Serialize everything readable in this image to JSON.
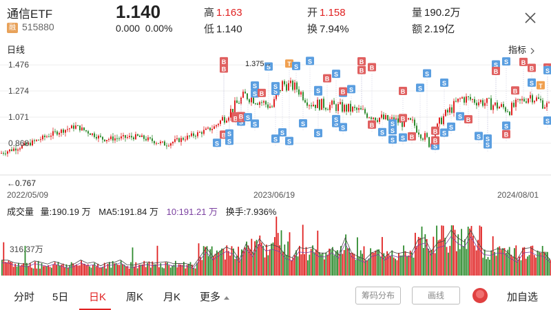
{
  "header": {
    "name": "通信ETF",
    "badge": "融",
    "code": "515880",
    "price": "1.140",
    "change": "0.000",
    "change_pct": "0.00%",
    "high_label": "高",
    "high": "1.163",
    "low_label": "低",
    "low": "1.140",
    "open_label": "开",
    "open": "1.158",
    "turnover_label": "换",
    "turnover": "7.94%",
    "volume_label": "量",
    "volume": "190.2万",
    "amount_label": "额",
    "amount": "2.19亿"
  },
  "chart": {
    "period_label": "日线",
    "indicator_label": "指标",
    "y_ticks": [
      "1.476",
      "1.274",
      "1.071",
      "0.868"
    ],
    "max_marker": "1.375→",
    "min_marker": "←0.767",
    "dates": [
      "2022/05/09",
      "2023/06/19",
      "2024/08/01"
    ],
    "buy_label": "B",
    "sell_label": "S",
    "t_label": "T"
  },
  "volume": {
    "title": "成交量",
    "vol_text": "量:190.19 万",
    "ma5_text": "MA5:191.84 万",
    "ma10_text": "10:191.21 万",
    "turnover_text": "换手:7.936%",
    "tick": "316.37万"
  },
  "tabs": {
    "items": [
      "分时",
      "5日",
      "日K",
      "周K",
      "月K",
      "更多"
    ],
    "chip_label": "筹码分布",
    "draw_label": "画线",
    "add_label": "加自选"
  },
  "colors": {
    "up": "#e02020",
    "down": "#2e8b2e",
    "buy": "#e06060",
    "sell": "#5a9ee0",
    "t": "#f0a050"
  },
  "chart_data": {
    "type": "candlestick",
    "y_ticks": [
      1.476,
      1.274,
      1.071,
      0.868
    ],
    "max_marked": 1.375,
    "min_marked": 0.767,
    "date_labels": [
      "2022/05/09",
      "2023/06/19",
      "2024/08/01"
    ],
    "volume_tick": "316.37万"
  }
}
